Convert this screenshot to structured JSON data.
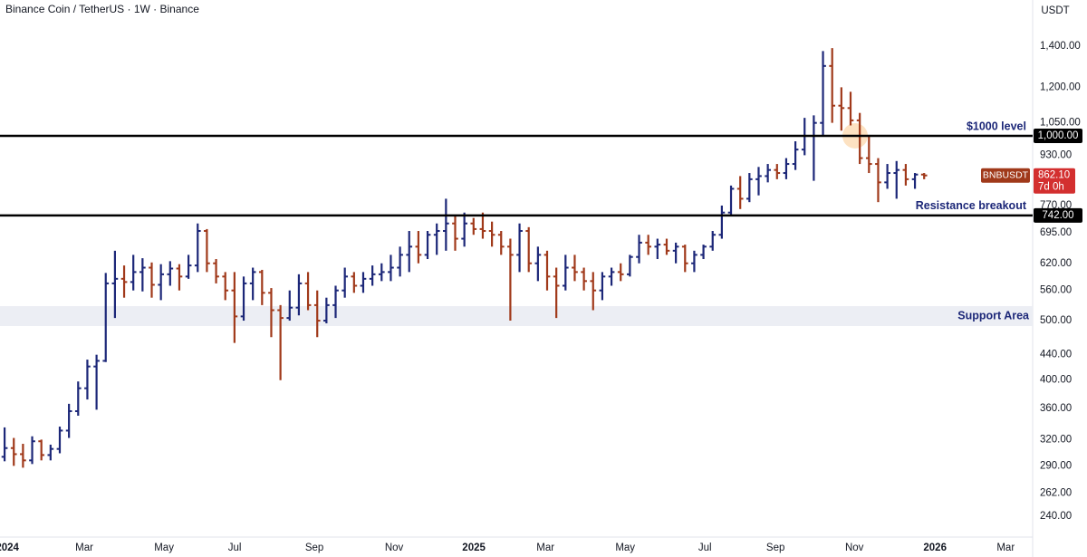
{
  "chart_data": {
    "type": "ohlc",
    "title": "Binance Coin / TetherUS · 1W · Binance",
    "currency": "USDT",
    "symbol": "BNBUSDT",
    "countdown": "7d 0h",
    "last_price": {
      "value": 862.1,
      "label": "862.10"
    },
    "up_color": "#1c2778",
    "down_color": "#a0391a",
    "log_scale": true,
    "ylim": [
      222,
      1665
    ],
    "yticks": [
      {
        "value": 240,
        "label": "240.00"
      },
      {
        "value": 262,
        "label": "262.00"
      },
      {
        "value": 290,
        "label": "290.00"
      },
      {
        "value": 320,
        "label": "320.00"
      },
      {
        "value": 360,
        "label": "360.00"
      },
      {
        "value": 400,
        "label": "400.00"
      },
      {
        "value": 440,
        "label": "440.00"
      },
      {
        "value": 500,
        "label": "500.00"
      },
      {
        "value": 560,
        "label": "560.00"
      },
      {
        "value": 620,
        "label": "620.00"
      },
      {
        "value": 695,
        "label": "695.00"
      },
      {
        "value": 770,
        "label": "770.00"
      },
      {
        "value": 930,
        "label": "930.00"
      },
      {
        "value": 1050,
        "label": "1,050.00"
      },
      {
        "value": 1200,
        "label": "1,200.00"
      },
      {
        "value": 1400,
        "label": "1,400.00"
      }
    ],
    "xlim": [
      -0.5,
      111.8
    ],
    "xticks": [
      {
        "value": 0.3,
        "label": "2024"
      },
      {
        "value": 8.67,
        "label": "Mar"
      },
      {
        "value": 17.34,
        "label": "May"
      },
      {
        "value": 25.02,
        "label": "Jul"
      },
      {
        "value": 33.69,
        "label": "Sep"
      },
      {
        "value": 42.36,
        "label": "Nov"
      },
      {
        "value": 51.03,
        "label": "2025"
      },
      {
        "value": 58.82,
        "label": "Mar"
      },
      {
        "value": 67.49,
        "label": "May"
      },
      {
        "value": 76.16,
        "label": "Jul"
      },
      {
        "value": 83.84,
        "label": "Sep"
      },
      {
        "value": 92.41,
        "label": "Nov"
      },
      {
        "value": 101.18,
        "label": "2026"
      },
      {
        "value": 108.87,
        "label": "Mar"
      }
    ],
    "levels": [
      {
        "value": 1000,
        "label": "1,000.00",
        "name": "$1000 level"
      },
      {
        "value": 742,
        "label": "742.00",
        "name": "Resistance breakout"
      }
    ],
    "zones": [
      {
        "name": "Support Area",
        "range": [
          490,
          528
        ]
      }
    ],
    "ohlc": [
      [
        300,
        335,
        295,
        310
      ],
      [
        310,
        322,
        290,
        303
      ],
      [
        303,
        315,
        288,
        296
      ],
      [
        296,
        324,
        292,
        318
      ],
      [
        318,
        320,
        296,
        302
      ],
      [
        302,
        314,
        296,
        309
      ],
      [
        309,
        336,
        304,
        331
      ],
      [
        331,
        366,
        322,
        356
      ],
      [
        356,
        398,
        350,
        388
      ],
      [
        388,
        432,
        372,
        421
      ],
      [
        421,
        440,
        358,
        430
      ],
      [
        430,
        598,
        428,
        575
      ],
      [
        575,
        650,
        505,
        585
      ],
      [
        585,
        615,
        545,
        578
      ],
      [
        578,
        640,
        560,
        600
      ],
      [
        600,
        632,
        558,
        610
      ],
      [
        610,
        622,
        545,
        572
      ],
      [
        572,
        618,
        540,
        595
      ],
      [
        595,
        625,
        570,
        608
      ],
      [
        608,
        618,
        560,
        590
      ],
      [
        590,
        640,
        585,
        615
      ],
      [
        615,
        720,
        600,
        700
      ],
      [
        700,
        705,
        600,
        620
      ],
      [
        620,
        630,
        575,
        590
      ],
      [
        590,
        600,
        540,
        560
      ],
      [
        560,
        600,
        460,
        508
      ],
      [
        508,
        590,
        500,
        575
      ],
      [
        575,
        610,
        540,
        600
      ],
      [
        600,
        605,
        530,
        555
      ],
      [
        555,
        565,
        470,
        520
      ],
      [
        520,
        530,
        400,
        505
      ],
      [
        505,
        560,
        500,
        525
      ],
      [
        525,
        595,
        510,
        575
      ],
      [
        575,
        600,
        520,
        530
      ],
      [
        530,
        560,
        470,
        500
      ],
      [
        500,
        545,
        495,
        530
      ],
      [
        530,
        570,
        505,
        560
      ],
      [
        560,
        610,
        545,
        590
      ],
      [
        590,
        600,
        555,
        570
      ],
      [
        570,
        600,
        555,
        585
      ],
      [
        585,
        615,
        570,
        595
      ],
      [
        595,
        620,
        580,
        600
      ],
      [
        600,
        640,
        580,
        610
      ],
      [
        610,
        660,
        590,
        640
      ],
      [
        640,
        700,
        600,
        660
      ],
      [
        660,
        700,
        620,
        640
      ],
      [
        640,
        700,
        630,
        690
      ],
      [
        690,
        720,
        640,
        700
      ],
      [
        700,
        790,
        650,
        720
      ],
      [
        720,
        740,
        650,
        680
      ],
      [
        680,
        750,
        660,
        720
      ],
      [
        720,
        735,
        690,
        705
      ],
      [
        705,
        750,
        680,
        700
      ],
      [
        700,
        725,
        660,
        690
      ],
      [
        690,
        700,
        640,
        660
      ],
      [
        660,
        680,
        500,
        640
      ],
      [
        640,
        720,
        600,
        700
      ],
      [
        700,
        710,
        600,
        620
      ],
      [
        620,
        660,
        580,
        640
      ],
      [
        640,
        650,
        560,
        590
      ],
      [
        590,
        610,
        505,
        570
      ],
      [
        570,
        640,
        560,
        610
      ],
      [
        610,
        640,
        580,
        600
      ],
      [
        600,
        610,
        560,
        580
      ],
      [
        580,
        600,
        520,
        560
      ],
      [
        560,
        600,
        540,
        590
      ],
      [
        590,
        610,
        570,
        600
      ],
      [
        600,
        620,
        580,
        595
      ],
      [
        595,
        640,
        590,
        635
      ],
      [
        635,
        690,
        620,
        670
      ],
      [
        670,
        690,
        640,
        660
      ],
      [
        660,
        680,
        630,
        665
      ],
      [
        665,
        680,
        640,
        650
      ],
      [
        650,
        670,
        620,
        660
      ],
      [
        660,
        665,
        600,
        620
      ],
      [
        620,
        650,
        600,
        640
      ],
      [
        640,
        665,
        630,
        660
      ],
      [
        660,
        700,
        650,
        690
      ],
      [
        690,
        770,
        680,
        750
      ],
      [
        750,
        830,
        740,
        820
      ],
      [
        820,
        860,
        760,
        790
      ],
      [
        790,
        870,
        780,
        850
      ],
      [
        850,
        890,
        800,
        860
      ],
      [
        860,
        900,
        840,
        880
      ],
      [
        880,
        900,
        850,
        870
      ],
      [
        870,
        920,
        850,
        900
      ],
      [
        900,
        980,
        880,
        950
      ],
      [
        950,
        1070,
        930,
        1000
      ],
      [
        1000,
        1080,
        845,
        1050
      ],
      [
        1050,
        1375,
        1000,
        1300
      ],
      [
        1300,
        1390,
        1050,
        1120
      ],
      [
        1120,
        1200,
        1020,
        1110
      ],
      [
        1110,
        1180,
        1040,
        1060
      ],
      [
        1060,
        1090,
        900,
        920
      ],
      [
        920,
        1000,
        870,
        900
      ],
      [
        900,
        920,
        780,
        840
      ],
      [
        840,
        900,
        820,
        870
      ],
      [
        870,
        910,
        790,
        880
      ],
      [
        880,
        900,
        830,
        850
      ],
      [
        850,
        870,
        820,
        865
      ],
      [
        865,
        870,
        850,
        862.1
      ]
    ]
  }
}
